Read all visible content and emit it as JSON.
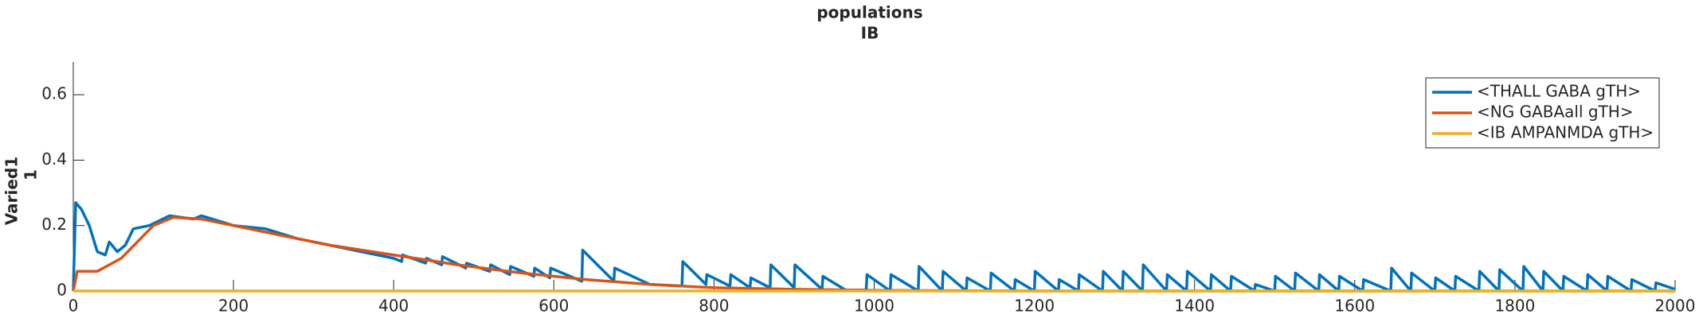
{
  "chart_data": {
    "type": "line",
    "title": "populations",
    "subtitle": "IB",
    "ylabel": "Varied1",
    "ylabel2": "1",
    "xlim": [
      0,
      2000
    ],
    "ylim": [
      0,
      0.7
    ],
    "xticks": [
      0,
      200,
      400,
      600,
      800,
      1000,
      1200,
      1400,
      1600,
      1800,
      2000
    ],
    "yticks": [
      0,
      0.2,
      0.4,
      0.6
    ],
    "grid": false,
    "legend": "upper right",
    "series": [
      {
        "name": "<THALL GABA gTH>",
        "color": "#0072bd",
        "x": [
          0,
          3,
          10,
          20,
          30,
          40,
          45,
          55,
          65,
          75,
          95,
          120,
          150,
          160,
          200,
          240,
          280,
          320,
          360,
          400,
          410,
          411,
          440,
          441,
          460,
          461,
          490,
          491,
          520,
          521,
          545,
          546,
          575,
          576,
          595,
          596,
          635,
          636,
          675,
          676,
          720,
          760,
          761,
          790,
          791,
          820,
          821,
          845,
          846,
          870,
          871,
          900,
          901,
          935,
          936,
          965,
          990,
          991,
          1020,
          1021,
          1055,
          1056,
          1085,
          1086,
          1115,
          1116,
          1145,
          1146,
          1175,
          1176,
          1200,
          1201,
          1230,
          1231,
          1255,
          1256,
          1285,
          1286,
          1310,
          1311,
          1335,
          1336,
          1365,
          1366,
          1390,
          1391,
          1420,
          1421,
          1445,
          1446,
          1475,
          1476,
          1500,
          1501,
          1525,
          1526,
          1555,
          1556,
          1580,
          1581,
          1610,
          1611,
          1645,
          1646,
          1670,
          1671,
          1700,
          1701,
          1725,
          1726,
          1755,
          1756,
          1780,
          1781,
          1810,
          1811,
          1835,
          1836,
          1860,
          1861,
          1890,
          1891,
          1915,
          1916,
          1945,
          1946,
          1975,
          1976,
          2000
        ],
        "values": [
          0,
          0.27,
          0.25,
          0.2,
          0.12,
          0.11,
          0.15,
          0.12,
          0.14,
          0.19,
          0.2,
          0.23,
          0.22,
          0.23,
          0.2,
          0.19,
          0.16,
          0.14,
          0.12,
          0.1,
          0.09,
          0.11,
          0.085,
          0.1,
          0.08,
          0.105,
          0.07,
          0.085,
          0.06,
          0.08,
          0.05,
          0.075,
          0.045,
          0.07,
          0.04,
          0.07,
          0.03,
          0.125,
          0.03,
          0.07,
          0.02,
          0.015,
          0.09,
          0.02,
          0.05,
          0.015,
          0.05,
          0.01,
          0.04,
          0.01,
          0.08,
          0.01,
          0.08,
          0.005,
          0.045,
          0.002,
          0.003,
          0.05,
          0,
          0.05,
          0,
          0.075,
          0,
          0.06,
          0,
          0.04,
          0,
          0.055,
          0,
          0.035,
          0,
          0.06,
          0,
          0.035,
          0,
          0.05,
          0,
          0.06,
          0,
          0.06,
          0,
          0.08,
          0,
          0.05,
          0,
          0.06,
          0,
          0.05,
          0,
          0.045,
          0,
          0.02,
          0,
          0.045,
          0,
          0.055,
          0,
          0.05,
          0,
          0.045,
          0,
          0.035,
          0,
          0.07,
          0,
          0.055,
          0,
          0.04,
          0,
          0.045,
          0,
          0.06,
          0,
          0.065,
          0,
          0.075,
          0,
          0.06,
          0,
          0.045,
          0,
          0.05,
          0,
          0.045,
          0,
          0.035,
          0,
          0.025,
          0.005
        ]
      },
      {
        "name": "<NG GABAall gTH>",
        "color": "#d95319",
        "x": [
          0,
          5,
          30,
          60,
          80,
          100,
          125,
          160,
          200,
          260,
          320,
          400,
          480,
          560,
          640,
          720,
          800,
          900,
          1000,
          1200,
          2000
        ],
        "values": [
          0,
          0.06,
          0.06,
          0.1,
          0.15,
          0.2,
          0.225,
          0.22,
          0.2,
          0.17,
          0.14,
          0.11,
          0.08,
          0.055,
          0.035,
          0.02,
          0.01,
          0.005,
          0.002,
          0,
          0
        ]
      },
      {
        "name": "<IB AMPANMDA gTH>",
        "color": "#edb120",
        "x": [
          0,
          2000
        ],
        "values": [
          0,
          0
        ]
      }
    ]
  }
}
